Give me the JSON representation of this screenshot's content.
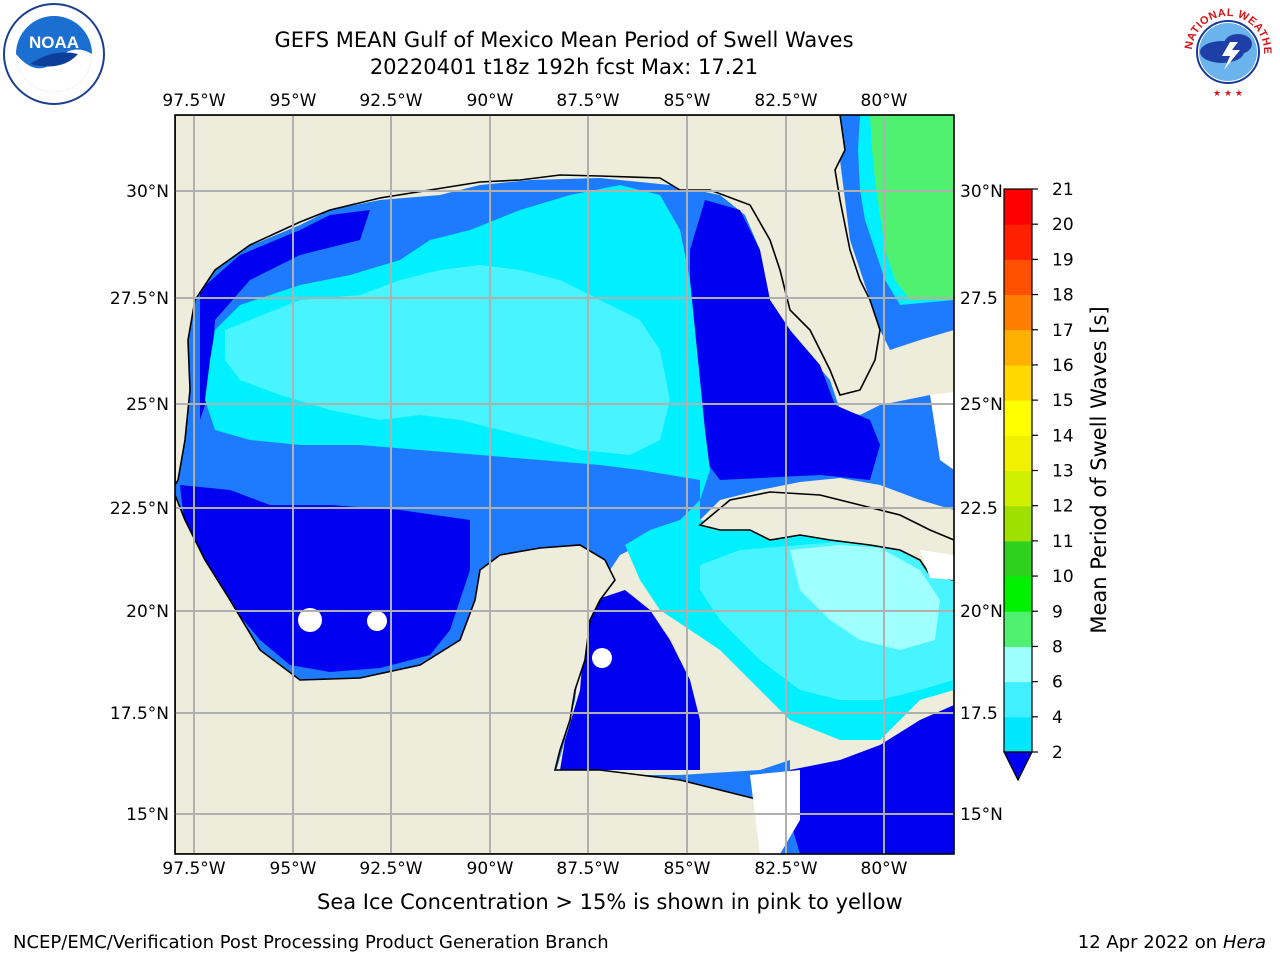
{
  "title_line1": "GEFS MEAN Gulf of Mexico Mean Period of Swell Waves",
  "title_line2": "20220401 t18z 192h fcst   Max: 17.21",
  "lon_labels": [
    "97.5°W",
    "95°W",
    "92.5°W",
    "90°W",
    "87.5°W",
    "85°W",
    "82.5°W",
    "80°W"
  ],
  "lat_labels_left": [
    "30°N",
    "27.5°N",
    "25°N",
    "22.5°N",
    "20°N",
    "17.5°N",
    "15°N"
  ],
  "lat_labels_right": [
    "30°N",
    "27.5",
    "25°N",
    "22.5",
    "20°N",
    "17.5",
    "15°N"
  ],
  "colorbar": {
    "label": "Mean Period of Swell Waves [s]",
    "ticks": [
      "2",
      "4",
      "6",
      "8",
      "9",
      "10",
      "11",
      "12",
      "13",
      "14",
      "15",
      "16",
      "17",
      "18",
      "19",
      "20",
      "21"
    ],
    "colors": [
      "#0050ff",
      "#00e6ff",
      "#40f0ff",
      "#a0ffff",
      "#50f070",
      "#00f000",
      "#30d020",
      "#a0e000",
      "#d0f000",
      "#f0f000",
      "#ffff00",
      "#ffd800",
      "#ffb000",
      "#ff8000",
      "#ff5000",
      "#ff2000",
      "#ff0000"
    ]
  },
  "colors": {
    "land": "#eeecdb",
    "swell_2": "#0000f0",
    "swell_2_4": "#1e7bff",
    "swell_4_6": "#00f0ff",
    "swell_6_8": "#48f4ff",
    "swell_8_9": "#a0ffff",
    "swell_9_10": "#50f070",
    "ice_yellow": "#f4f000"
  },
  "sea_ice_caption": "Sea Ice Concentration > 15% is shown in pink to yellow",
  "footer_left": "NCEP/EMC/Verification Post Processing Product Generation Branch",
  "footer_date": "12 Apr 2022 on ",
  "footer_machine": "Hera",
  "logos": {
    "noaa": "NOAA",
    "nws": "NATIONAL WEATHER SERVICE"
  }
}
